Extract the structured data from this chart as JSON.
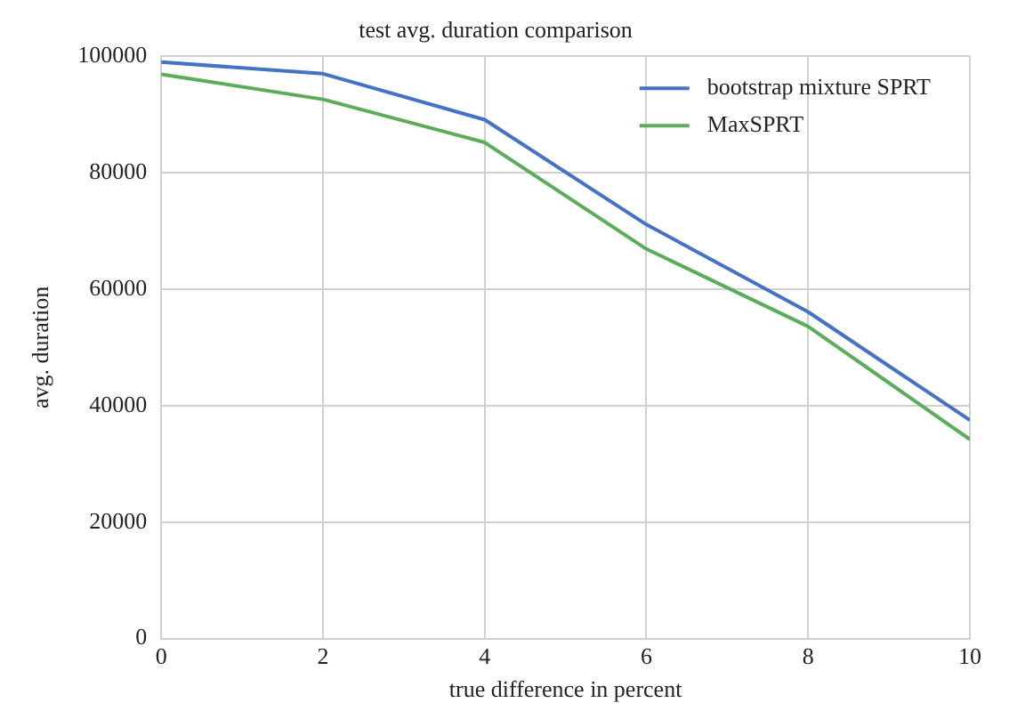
{
  "chart_data": {
    "type": "line",
    "title": "test avg. duration comparison",
    "xlabel": "true difference in percent",
    "ylabel": "avg. duration",
    "x": [
      0,
      2,
      4,
      6,
      8,
      10
    ],
    "series": [
      {
        "name": "bootstrap mixture SPRT",
        "color": "#4472c4",
        "values": [
          99000,
          97000,
          89100,
          71100,
          56100,
          37500
        ]
      },
      {
        "name": "MaxSPRT",
        "color": "#5aad5a",
        "values": [
          96900,
          92600,
          85200,
          66900,
          53600,
          34200
        ]
      }
    ],
    "xlim": [
      0,
      10
    ],
    "xticks": [
      0,
      2,
      4,
      6,
      8,
      10
    ],
    "ylim": [
      0,
      100000
    ],
    "yticks": [
      0,
      20000,
      40000,
      60000,
      80000,
      100000
    ],
    "grid": true,
    "legend": "top right",
    "marker": "none",
    "line_style": "solid"
  }
}
